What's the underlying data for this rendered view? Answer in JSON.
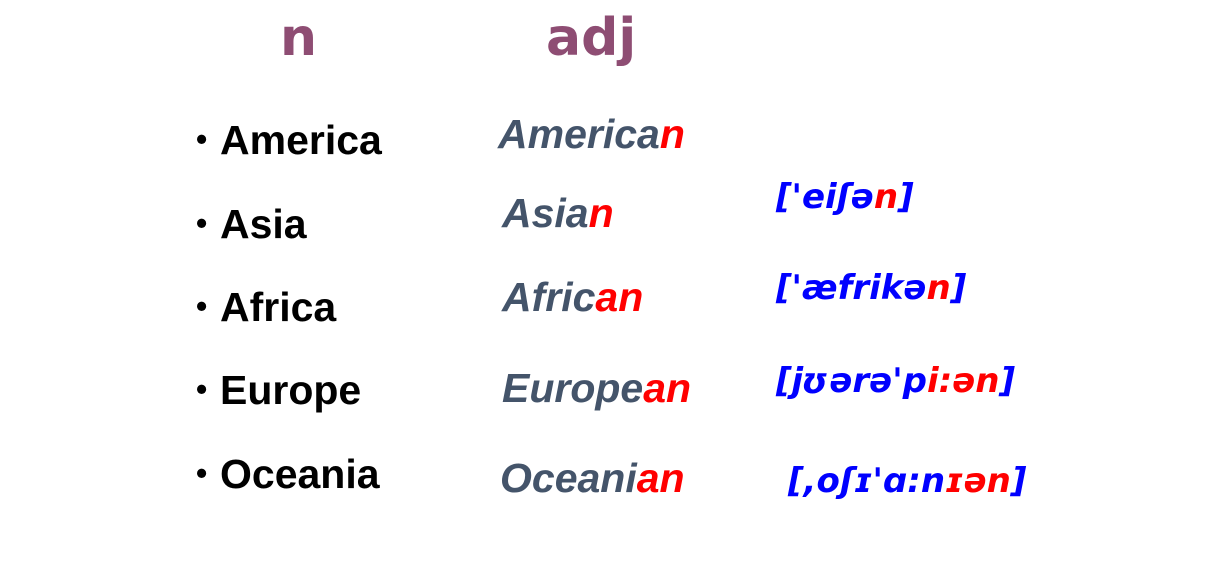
{
  "colors": {
    "header": "#8e4d73",
    "noun": "#000000",
    "adj_stem": "#44546a",
    "suffix": "#ff0000",
    "phonetic": "#0000ff"
  },
  "headers": {
    "noun": "n",
    "adj": "adj"
  },
  "bullet": "•",
  "nouns": [
    "America",
    "Asia",
    "Africa",
    "Europe",
    "Oceania"
  ],
  "adjectives": [
    {
      "stem": "America",
      "suffix": "n"
    },
    {
      "stem": "Asia",
      "suffix": "n"
    },
    {
      "stem": "Afric",
      "suffix": "an"
    },
    {
      "stem": "Europe",
      "suffix": "an"
    },
    {
      "stem": "Oceani",
      "suffix": "an"
    }
  ],
  "phonetics": [
    {
      "pre": "",
      "main": "",
      "accent": "",
      "post": ""
    },
    {
      "pre": "['eiʃə",
      "main": "",
      "accent": "n",
      "post": "]"
    },
    {
      "pre": "['æfrikə",
      "main": "",
      "accent": "n",
      "post": "]"
    },
    {
      "pre": "[jʊərə'p",
      "main": "",
      "accent": "i:ən",
      "post": "]"
    },
    {
      "pre": "[,oʃɪ'ɑ:n",
      "main": "",
      "accent": "ɪən",
      "post": "]"
    }
  ]
}
